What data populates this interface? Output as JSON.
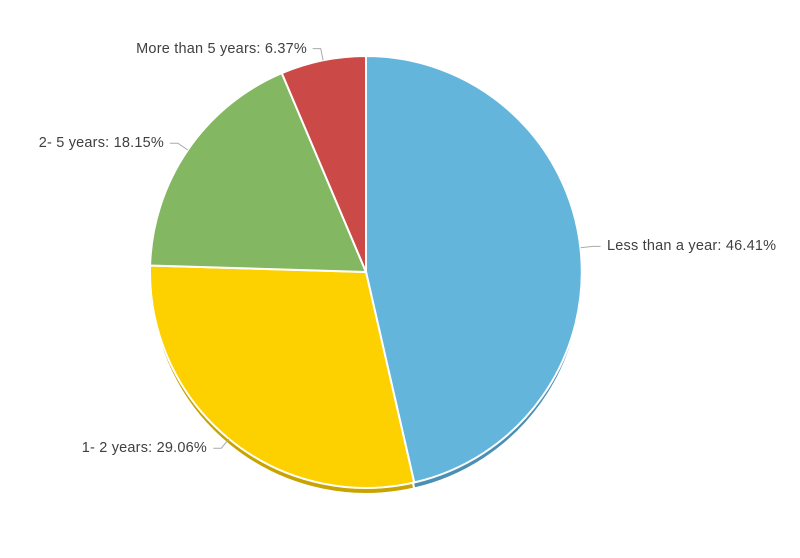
{
  "chart_data": {
    "type": "pie",
    "title": "",
    "categories": [
      "Less than a year",
      "1- 2 years",
      "2- 5 years",
      "More than 5 years"
    ],
    "values": [
      46.41,
      29.06,
      18.15,
      6.37
    ],
    "slices": [
      {
        "name": "Less than a year",
        "value": 46.41,
        "label_text": "Less than a year: 46.41%",
        "color": "#64B5DC",
        "depth_color": "#4D8FB2"
      },
      {
        "name": "1- 2 years",
        "value": 29.06,
        "label_text": "1- 2 years: 29.06%",
        "color": "#FDD000",
        "depth_color": "#C9A400"
      },
      {
        "name": "2- 5 years",
        "value": 18.15,
        "label_text": "2- 5 years: 18.15%",
        "color": "#84B761",
        "depth_color": "#68954A"
      },
      {
        "name": "More than 5 years",
        "value": 6.37,
        "label_text": "More than 5 years: 6.37%",
        "color": "#CB4A48",
        "depth_color": "#A63C3B"
      }
    ],
    "start_angle_deg": 0,
    "direction": "clockwise",
    "labels_outside": true,
    "legend": "none",
    "background": "#FFFFFF",
    "slice_separator_color": "#FFFFFF",
    "leader_line_color": "#AAAAAA",
    "label_text_color": "#404040"
  }
}
